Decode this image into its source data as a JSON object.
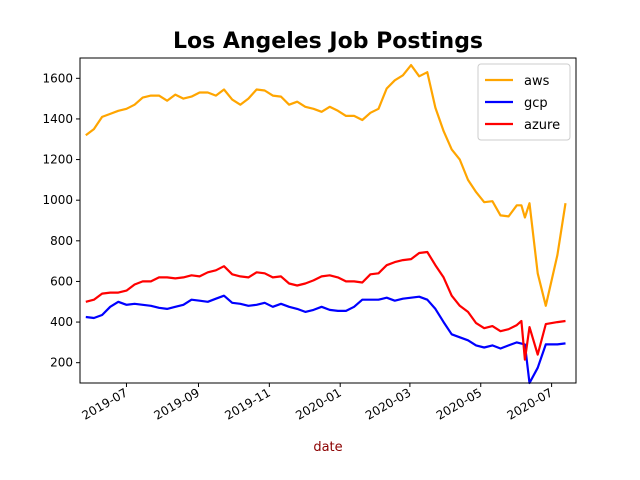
{
  "chart_data": {
    "type": "line",
    "title": "Los Angeles Job Postings",
    "xlabel": "date",
    "ylabel": "",
    "xlim": [
      "2019-05-22",
      "2020-07-22"
    ],
    "ylim": [
      100,
      1700
    ],
    "x_ticks": [
      {
        "date": "2019-07-01",
        "label": "2019-07"
      },
      {
        "date": "2019-09-01",
        "label": "2019-09"
      },
      {
        "date": "2019-11-01",
        "label": "2019-11"
      },
      {
        "date": "2020-01-01",
        "label": "2020-01"
      },
      {
        "date": "2020-03-01",
        "label": "2020-03"
      },
      {
        "date": "2020-05-01",
        "label": "2020-05"
      },
      {
        "date": "2020-07-01",
        "label": "2020-07"
      }
    ],
    "y_ticks": [
      200,
      400,
      600,
      800,
      1000,
      1200,
      1400,
      1600
    ],
    "grid": false,
    "legend_position": "top-right",
    "series": [
      {
        "name": "aws",
        "color": "#ffa500",
        "points": [
          [
            "2019-05-27",
            1320
          ],
          [
            "2019-06-03",
            1350
          ],
          [
            "2019-06-10",
            1410
          ],
          [
            "2019-06-17",
            1425
          ],
          [
            "2019-06-24",
            1440
          ],
          [
            "2019-07-01",
            1450
          ],
          [
            "2019-07-08",
            1470
          ],
          [
            "2019-07-15",
            1505
          ],
          [
            "2019-07-22",
            1515
          ],
          [
            "2019-07-29",
            1515
          ],
          [
            "2019-08-05",
            1490
          ],
          [
            "2019-08-12",
            1520
          ],
          [
            "2019-08-19",
            1500
          ],
          [
            "2019-08-26",
            1510
          ],
          [
            "2019-09-02",
            1530
          ],
          [
            "2019-09-09",
            1530
          ],
          [
            "2019-09-16",
            1515
          ],
          [
            "2019-09-23",
            1545
          ],
          [
            "2019-09-30",
            1495
          ],
          [
            "2019-10-07",
            1470
          ],
          [
            "2019-10-14",
            1500
          ],
          [
            "2019-10-21",
            1545
          ],
          [
            "2019-10-28",
            1540
          ],
          [
            "2019-11-04",
            1515
          ],
          [
            "2019-11-11",
            1510
          ],
          [
            "2019-11-18",
            1470
          ],
          [
            "2019-11-25",
            1485
          ],
          [
            "2019-12-02",
            1460
          ],
          [
            "2019-12-09",
            1450
          ],
          [
            "2019-12-16",
            1435
          ],
          [
            "2019-12-23",
            1460
          ],
          [
            "2019-12-30",
            1440
          ],
          [
            "2020-01-06",
            1415
          ],
          [
            "2020-01-13",
            1415
          ],
          [
            "2020-01-20",
            1395
          ],
          [
            "2020-01-27",
            1430
          ],
          [
            "2020-02-03",
            1450
          ],
          [
            "2020-02-10",
            1550
          ],
          [
            "2020-02-17",
            1590
          ],
          [
            "2020-02-24",
            1615
          ],
          [
            "2020-03-02",
            1665
          ],
          [
            "2020-03-09",
            1610
          ],
          [
            "2020-03-16",
            1630
          ],
          [
            "2020-03-23",
            1455
          ],
          [
            "2020-03-30",
            1340
          ],
          [
            "2020-04-06",
            1250
          ],
          [
            "2020-04-13",
            1200
          ],
          [
            "2020-04-20",
            1100
          ],
          [
            "2020-04-27",
            1040
          ],
          [
            "2020-05-04",
            990
          ],
          [
            "2020-05-11",
            995
          ],
          [
            "2020-05-18",
            925
          ],
          [
            "2020-05-25",
            920
          ],
          [
            "2020-06-01",
            975
          ],
          [
            "2020-06-05",
            975
          ],
          [
            "2020-06-08",
            915
          ],
          [
            "2020-06-12",
            985
          ],
          [
            "2020-06-19",
            640
          ],
          [
            "2020-06-26",
            480
          ],
          [
            "2020-07-06",
            730
          ],
          [
            "2020-07-13",
            985
          ]
        ]
      },
      {
        "name": "gcp",
        "color": "#0000ff",
        "points": [
          [
            "2019-05-27",
            425
          ],
          [
            "2019-06-03",
            420
          ],
          [
            "2019-06-10",
            435
          ],
          [
            "2019-06-17",
            475
          ],
          [
            "2019-06-24",
            500
          ],
          [
            "2019-07-01",
            485
          ],
          [
            "2019-07-08",
            490
          ],
          [
            "2019-07-15",
            485
          ],
          [
            "2019-07-22",
            480
          ],
          [
            "2019-07-29",
            470
          ],
          [
            "2019-08-05",
            465
          ],
          [
            "2019-08-12",
            475
          ],
          [
            "2019-08-19",
            485
          ],
          [
            "2019-08-26",
            510
          ],
          [
            "2019-09-02",
            505
          ],
          [
            "2019-09-09",
            500
          ],
          [
            "2019-09-16",
            515
          ],
          [
            "2019-09-23",
            530
          ],
          [
            "2019-09-30",
            495
          ],
          [
            "2019-10-07",
            490
          ],
          [
            "2019-10-14",
            480
          ],
          [
            "2019-10-21",
            485
          ],
          [
            "2019-10-28",
            495
          ],
          [
            "2019-11-04",
            475
          ],
          [
            "2019-11-11",
            490
          ],
          [
            "2019-11-18",
            475
          ],
          [
            "2019-11-25",
            465
          ],
          [
            "2019-12-02",
            450
          ],
          [
            "2019-12-09",
            460
          ],
          [
            "2019-12-16",
            475
          ],
          [
            "2019-12-23",
            460
          ],
          [
            "2019-12-30",
            455
          ],
          [
            "2020-01-06",
            455
          ],
          [
            "2020-01-13",
            475
          ],
          [
            "2020-01-20",
            510
          ],
          [
            "2020-01-27",
            510
          ],
          [
            "2020-02-03",
            510
          ],
          [
            "2020-02-10",
            520
          ],
          [
            "2020-02-17",
            505
          ],
          [
            "2020-02-24",
            515
          ],
          [
            "2020-03-02",
            520
          ],
          [
            "2020-03-09",
            525
          ],
          [
            "2020-03-16",
            510
          ],
          [
            "2020-03-23",
            465
          ],
          [
            "2020-03-30",
            400
          ],
          [
            "2020-04-06",
            340
          ],
          [
            "2020-04-13",
            325
          ],
          [
            "2020-04-20",
            310
          ],
          [
            "2020-04-27",
            285
          ],
          [
            "2020-05-04",
            275
          ],
          [
            "2020-05-11",
            285
          ],
          [
            "2020-05-18",
            270
          ],
          [
            "2020-05-25",
            285
          ],
          [
            "2020-06-01",
            300
          ],
          [
            "2020-06-08",
            290
          ],
          [
            "2020-06-12",
            100
          ],
          [
            "2020-06-19",
            175
          ],
          [
            "2020-06-26",
            290
          ],
          [
            "2020-07-06",
            290
          ],
          [
            "2020-07-13",
            295
          ]
        ]
      },
      {
        "name": "azure",
        "color": "#ff0000",
        "points": [
          [
            "2019-05-27",
            500
          ],
          [
            "2019-06-03",
            510
          ],
          [
            "2019-06-10",
            540
          ],
          [
            "2019-06-17",
            545
          ],
          [
            "2019-06-24",
            545
          ],
          [
            "2019-07-01",
            555
          ],
          [
            "2019-07-08",
            585
          ],
          [
            "2019-07-15",
            600
          ],
          [
            "2019-07-22",
            600
          ],
          [
            "2019-07-29",
            620
          ],
          [
            "2019-08-05",
            620
          ],
          [
            "2019-08-12",
            615
          ],
          [
            "2019-08-19",
            620
          ],
          [
            "2019-08-26",
            630
          ],
          [
            "2019-09-02",
            625
          ],
          [
            "2019-09-09",
            645
          ],
          [
            "2019-09-16",
            655
          ],
          [
            "2019-09-23",
            675
          ],
          [
            "2019-09-30",
            635
          ],
          [
            "2019-10-07",
            625
          ],
          [
            "2019-10-14",
            620
          ],
          [
            "2019-10-21",
            645
          ],
          [
            "2019-10-28",
            640
          ],
          [
            "2019-11-04",
            620
          ],
          [
            "2019-11-11",
            625
          ],
          [
            "2019-11-18",
            590
          ],
          [
            "2019-11-25",
            580
          ],
          [
            "2019-12-02",
            590
          ],
          [
            "2019-12-09",
            605
          ],
          [
            "2019-12-16",
            625
          ],
          [
            "2019-12-23",
            630
          ],
          [
            "2019-12-30",
            620
          ],
          [
            "2020-01-06",
            600
          ],
          [
            "2020-01-13",
            600
          ],
          [
            "2020-01-20",
            595
          ],
          [
            "2020-01-27",
            635
          ],
          [
            "2020-02-03",
            640
          ],
          [
            "2020-02-10",
            680
          ],
          [
            "2020-02-17",
            695
          ],
          [
            "2020-02-24",
            705
          ],
          [
            "2020-03-02",
            710
          ],
          [
            "2020-03-09",
            740
          ],
          [
            "2020-03-16",
            745
          ],
          [
            "2020-03-23",
            680
          ],
          [
            "2020-03-30",
            620
          ],
          [
            "2020-04-06",
            530
          ],
          [
            "2020-04-13",
            480
          ],
          [
            "2020-04-20",
            450
          ],
          [
            "2020-04-27",
            395
          ],
          [
            "2020-05-04",
            370
          ],
          [
            "2020-05-11",
            380
          ],
          [
            "2020-05-18",
            355
          ],
          [
            "2020-05-25",
            365
          ],
          [
            "2020-06-01",
            385
          ],
          [
            "2020-06-05",
            405
          ],
          [
            "2020-06-08",
            215
          ],
          [
            "2020-06-12",
            375
          ],
          [
            "2020-06-19",
            240
          ],
          [
            "2020-06-26",
            390
          ],
          [
            "2020-07-06",
            400
          ],
          [
            "2020-07-13",
            405
          ]
        ]
      }
    ]
  }
}
